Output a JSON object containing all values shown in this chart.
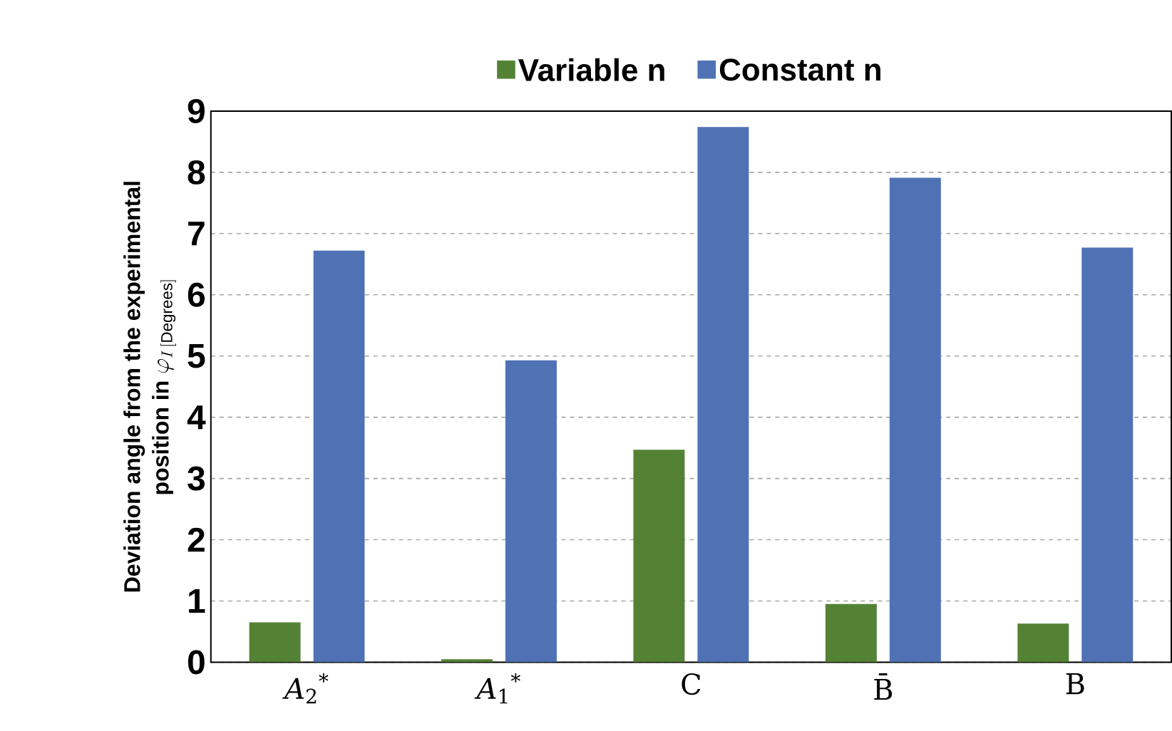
{
  "chart_data": {
    "type": "bar",
    "ylabel": "\\begin{array}{c}\\textbf{Deviation angle from the experimental}\\\\ \\textbf{position in } \\varphi_{I\\,[\\mathrm{Degrees}]}\\end{array}",
    "categories": [
      "*A*$_{2}$$^{*}$",
      "*A*$_{1}$$^{*}$",
      "C",
      "B̄",
      "B"
    ],
    "series": [
      {
        "name": "Variable n",
        "color": "#548235",
        "values": [
          0.65,
          0.05,
          3.47,
          0.95,
          0.63
        ]
      },
      {
        "name": "Constant n",
        "color": "#4f72b5",
        "values": [
          6.72,
          4.93,
          8.74,
          7.91,
          6.77
        ]
      }
    ],
    "ylim": [
      0,
      9
    ],
    "yticks": [
      0,
      1,
      2,
      3,
      4,
      5,
      6,
      7,
      8,
      9
    ],
    "grid": "y",
    "legend": "top"
  }
}
